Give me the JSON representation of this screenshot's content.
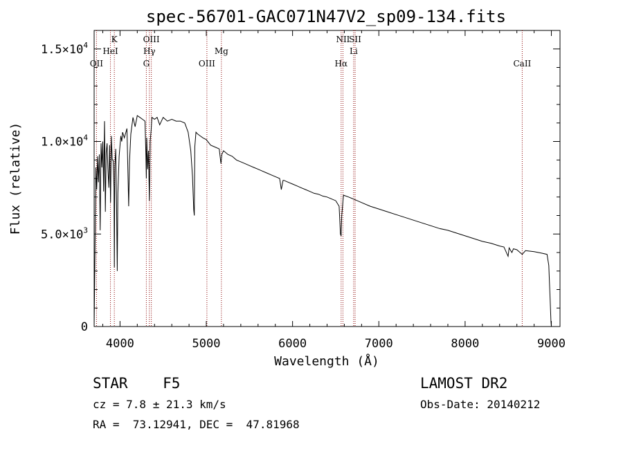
{
  "chart_data": {
    "type": "line",
    "title": "spec-56701-GAC071N47V2_sp09-134.fits",
    "xlabel": "Wavelength (Å)",
    "ylabel": "Flux (relative)",
    "xlim": [
      3700,
      9100
    ],
    "ylim": [
      0,
      16000
    ],
    "grid": false,
    "x_ticks": [
      {
        "value": 4000,
        "label": "4000"
      },
      {
        "value": 5000,
        "label": "5000"
      },
      {
        "value": 6000,
        "label": "6000"
      },
      {
        "value": 7000,
        "label": "7000"
      },
      {
        "value": 8000,
        "label": "8000"
      },
      {
        "value": 9000,
        "label": "9000"
      }
    ],
    "y_ticks": [
      {
        "value": 0,
        "mant": "0",
        "exp": ""
      },
      {
        "value": 5000,
        "mant": "5.0×10",
        "exp": "3"
      },
      {
        "value": 10000,
        "mant": "1.0×10",
        "exp": "4"
      },
      {
        "value": 15000,
        "mant": "1.5×10",
        "exp": "4"
      }
    ],
    "line_color": "#000000",
    "marker_color": "#8b0000",
    "lines": [
      {
        "label": "OII",
        "wavelength": 3727,
        "row": 3
      },
      {
        "label": "K",
        "wavelength": 3934,
        "row": 0
      },
      {
        "label": "HeI",
        "wavelength": 3889,
        "row": 1
      },
      {
        "label": "OIII",
        "wavelength": 4363,
        "row": 0
      },
      {
        "label": "Hγ",
        "wavelength": 4340,
        "row": 1
      },
      {
        "label": "G",
        "wavelength": 4305,
        "row": 2
      },
      {
        "label": "OIII",
        "wavelength": 5007,
        "row": 3
      },
      {
        "label": "Mg",
        "wavelength": 5175,
        "row": 1
      },
      {
        "label": "NII",
        "wavelength": 6584,
        "row": 0
      },
      {
        "label": "Li",
        "wavelength": 6708,
        "row": 1
      },
      {
        "label": "Hα",
        "wavelength": 6563,
        "row": 3
      },
      {
        "label": "SII",
        "wavelength": 6725,
        "row": 0
      },
      {
        "label": "CaII",
        "wavelength": 8662,
        "row": 3
      }
    ],
    "series": [
      {
        "x": [
          3700,
          3710,
          3720,
          3730,
          3740,
          3750,
          3760,
          3770,
          3780,
          3790,
          3800,
          3810,
          3820,
          3830,
          3840,
          3850,
          3860,
          3870,
          3880,
          3890,
          3900,
          3910,
          3920,
          3930,
          3934,
          3940,
          3950,
          3960,
          3968,
          3975,
          3990,
          4000,
          4010,
          4020,
          4030,
          4050,
          4080,
          4100,
          4110,
          4125,
          4150,
          4175,
          4200,
          4230,
          4260,
          4290,
          4300,
          4305,
          4310,
          4320,
          4330,
          4340,
          4350,
          4360,
          4370,
          4400,
          4430,
          4460,
          4500,
          4550,
          4600,
          4650,
          4700,
          4750,
          4790,
          4820,
          4840,
          4855,
          4861,
          4867,
          4880,
          4900,
          4930,
          4960,
          5000,
          5050,
          5100,
          5150,
          5170,
          5180,
          5200,
          5250,
          5300,
          5350,
          5400,
          5450,
          5500,
          5550,
          5600,
          5650,
          5700,
          5750,
          5800,
          5850,
          5870,
          5890,
          5900,
          5950,
          6000,
          6050,
          6100,
          6150,
          6200,
          6250,
          6300,
          6350,
          6400,
          6450,
          6500,
          6540,
          6555,
          6563,
          6570,
          6590,
          6650,
          6700,
          6750,
          6800,
          6900,
          7000,
          7100,
          7200,
          7300,
          7400,
          7500,
          7600,
          7700,
          7800,
          7900,
          8000,
          8100,
          8200,
          8300,
          8400,
          8450,
          8498,
          8510,
          8542,
          8560,
          8600,
          8662,
          8700,
          8800,
          8900,
          8950,
          8970,
          8985,
          8995,
          9000
        ],
        "y": [
          0,
          4000,
          8600,
          7400,
          9200,
          7800,
          9300,
          5200,
          9900,
          8600,
          10000,
          7300,
          11100,
          6200,
          9400,
          9900,
          8500,
          7500,
          9800,
          6700,
          10300,
          9000,
          9000,
          7500,
          3200,
          8700,
          9600,
          6600,
          3000,
          7200,
          9200,
          9800,
          10300,
          10000,
          10500,
          10200,
          10700,
          6500,
          8900,
          10400,
          11300,
          10800,
          11400,
          11300,
          11200,
          11100,
          9200,
          8000,
          10200,
          8500,
          9500,
          6800,
          10000,
          10600,
          11300,
          11200,
          11300,
          10900,
          11300,
          11100,
          11200,
          11100,
          11100,
          11000,
          10500,
          9500,
          8100,
          6300,
          6000,
          9700,
          10500,
          10400,
          10300,
          10200,
          10100,
          9800,
          9700,
          9600,
          8800,
          9300,
          9500,
          9300,
          9200,
          9000,
          8900,
          8800,
          8700,
          8600,
          8500,
          8400,
          8300,
          8200,
          8100,
          8000,
          7400,
          7900,
          7900,
          7800,
          7700,
          7600,
          7500,
          7400,
          7300,
          7200,
          7150,
          7050,
          7000,
          6900,
          6800,
          6500,
          5000,
          4900,
          6000,
          7100,
          7000,
          6900,
          6800,
          6700,
          6500,
          6350,
          6200,
          6050,
          5900,
          5750,
          5600,
          5450,
          5300,
          5200,
          5050,
          4900,
          4750,
          4600,
          4500,
          4350,
          4300,
          3800,
          4250,
          4000,
          4200,
          4150,
          3900,
          4100,
          4050,
          3950,
          3900,
          3300,
          1500,
          300,
          0
        ]
      }
    ],
    "annotations": {
      "left_line1": "STAR    F5",
      "left_line2": "cz = 7.8 ± 21.3 km/s",
      "left_line3": "RA =  73.12941, DEC =  47.81968",
      "right_line1": "LAMOST DR2",
      "right_line2": "Obs-Date: 20140212"
    }
  }
}
